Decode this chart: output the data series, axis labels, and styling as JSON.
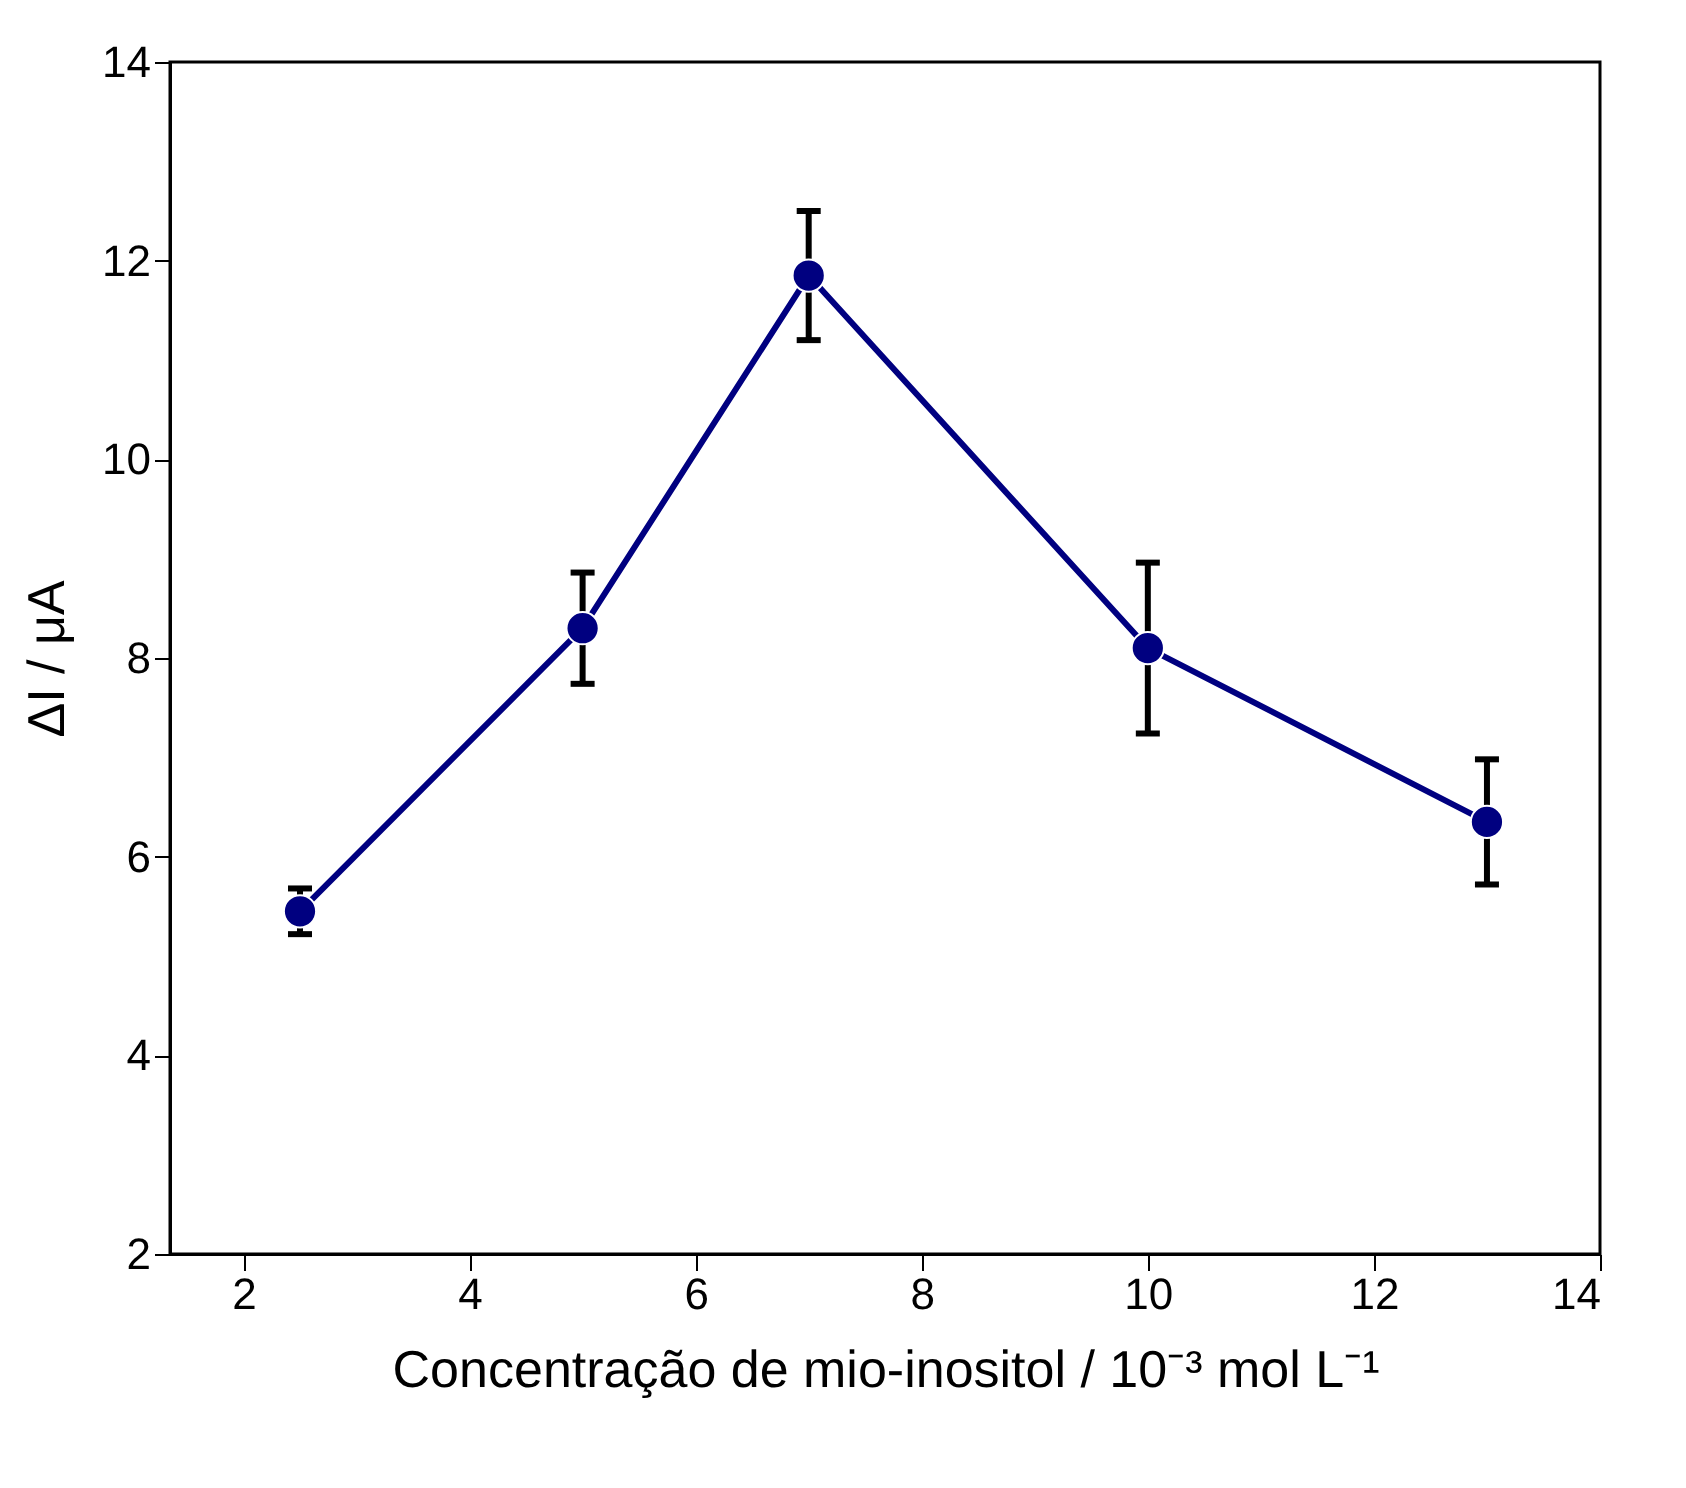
{
  "chart_data": {
    "type": "line",
    "xlabel": "Concentração de mio-inositol / 10⁻³ mol L⁻¹",
    "ylabel": "ΔI / μA",
    "x": [
      2.5,
      5,
      7,
      10,
      13
    ],
    "series": [
      {
        "color": "#000080",
        "values": [
          5.45,
          8.3,
          11.85,
          8.1,
          6.35
        ],
        "errors": [
          0.23,
          0.56,
          0.65,
          0.86,
          0.63
        ]
      }
    ],
    "xlim": [
      1.35,
      14
    ],
    "xticks": [
      2,
      4,
      6,
      8,
      10,
      12,
      14
    ],
    "ylim": [
      2,
      14
    ],
    "yticks": [
      2,
      4,
      6,
      8,
      10,
      12,
      14
    ],
    "grid": false,
    "marker": "circle",
    "line_style": "solid"
  }
}
